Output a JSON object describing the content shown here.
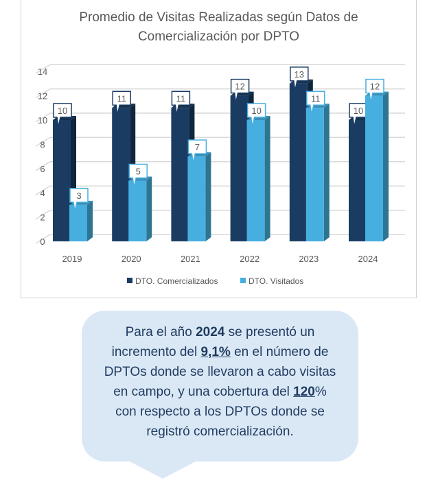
{
  "chart_data": {
    "type": "bar",
    "style": "3d-clustered-column",
    "title_lines": [
      "Promedio de Visitas Realizadas según Datos de",
      "Comercialización por DPTO"
    ],
    "categories": [
      "2019",
      "2020",
      "2021",
      "2022",
      "2023",
      "2024"
    ],
    "series": [
      {
        "name": "DTO. Comercializados",
        "values": [
          10,
          11,
          11,
          12,
          13,
          10
        ],
        "color": "#1a3c63"
      },
      {
        "name": "DTO. Visitados",
        "values": [
          3,
          5,
          7,
          10,
          11,
          12
        ],
        "color": "#47aee0"
      }
    ],
    "yticks": [
      "0",
      "2",
      "4",
      "6",
      "8",
      "10",
      "12",
      "14"
    ],
    "ylim": [
      0,
      14
    ],
    "grid": true,
    "legend": "bottom"
  },
  "callout": {
    "lines": [
      [
        {
          "t": "Para el año "
        },
        {
          "t": "2024",
          "b": true
        },
        {
          "t": " se presentó un"
        }
      ],
      [
        {
          "t": "incremento del "
        },
        {
          "t": "9,1%",
          "b": true,
          "u": true
        },
        {
          "t": " en el número de"
        }
      ],
      [
        {
          "t": "DPTOs donde se llevaron a cabo visitas"
        }
      ],
      [
        {
          "t": "en campo, y una cobertura del "
        },
        {
          "t": "120",
          "b": true,
          "u": true
        },
        {
          "t": "%"
        }
      ],
      [
        {
          "t": "con respecto a los DPTOs donde se"
        }
      ],
      [
        {
          "t": "registró comercialización."
        }
      ]
    ],
    "background": "#dae8f6"
  }
}
